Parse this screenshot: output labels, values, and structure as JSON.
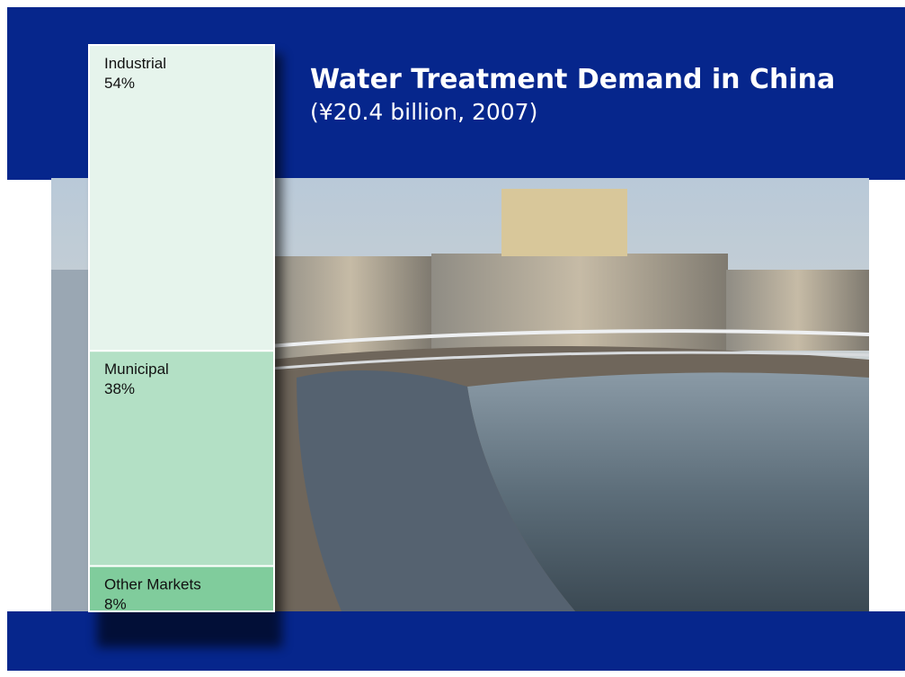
{
  "chart_data": {
    "type": "stacked_column",
    "title": "Water Treatment Demand in China",
    "subtitle": "(¥20.4 billion, 2007)",
    "series": [
      {
        "name": "Industrial",
        "color": "#e6f4ec",
        "values": [
          54
        ],
        "value_labels": [
          "54%"
        ]
      },
      {
        "name": "Municipal",
        "color": "#b3e0c5",
        "values": [
          38
        ],
        "value_labels": [
          "38%"
        ]
      },
      {
        "name": "Other Markets",
        "color": "#80cc9c",
        "values": [
          8
        ],
        "value_labels": [
          "8%"
        ]
      }
    ]
  }
}
